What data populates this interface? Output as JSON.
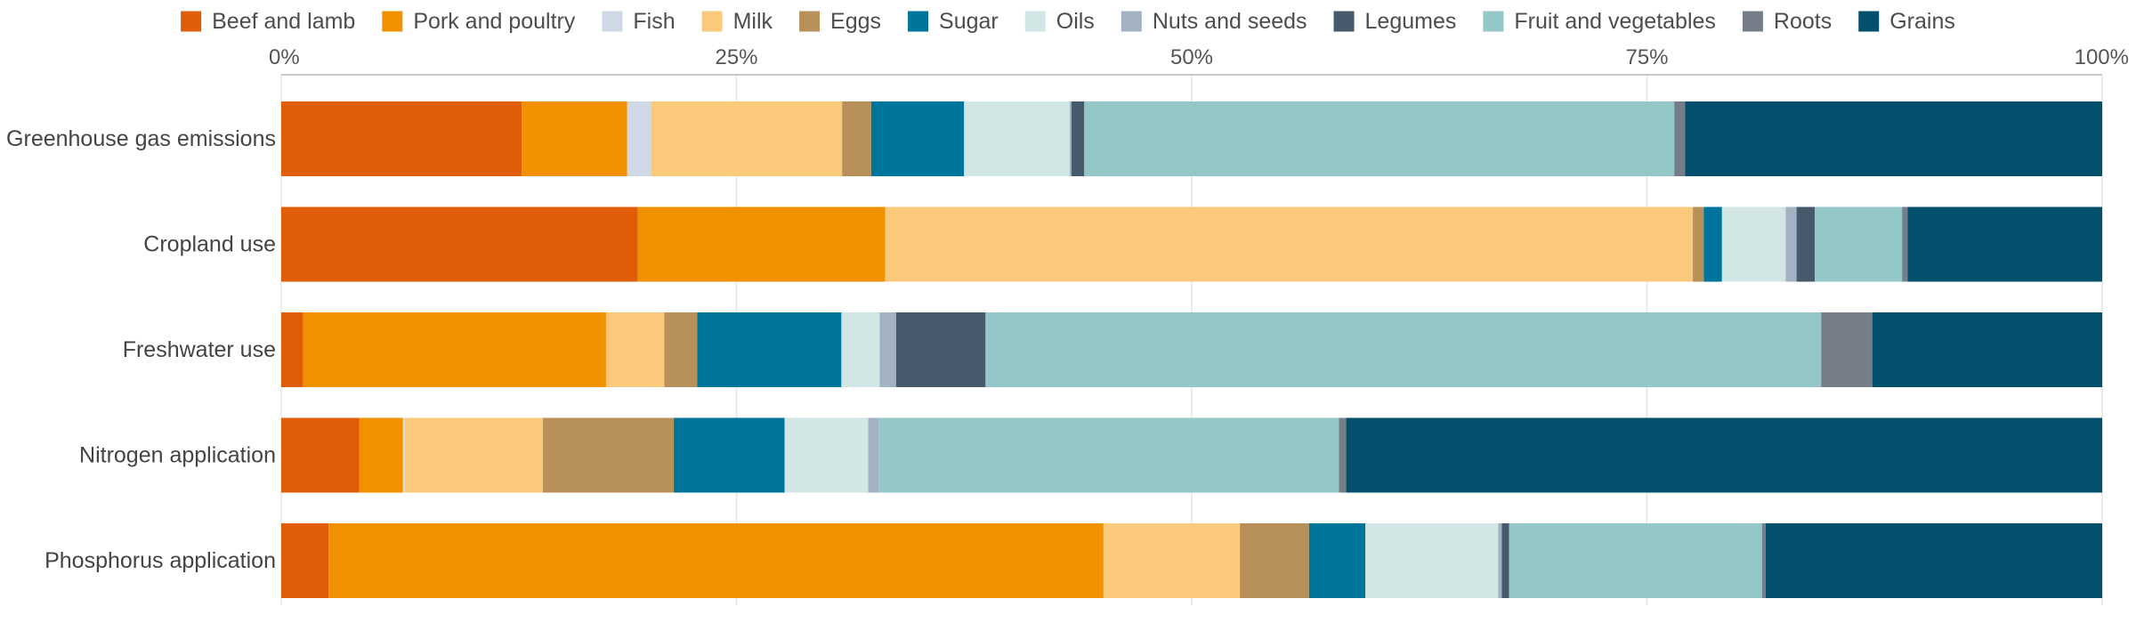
{
  "chart_data": {
    "type": "bar",
    "orientation": "horizontal",
    "stacked": true,
    "normalized": true,
    "categories": [
      "Greenhouse gas emissions",
      "Cropland use",
      "Freshwater use",
      "Nitrogen application",
      "Phosphorus application"
    ],
    "series": [
      {
        "name": "Beef and lamb",
        "color": "#e05e0a",
        "values": [
          13.2,
          19.6,
          1.2,
          4.3,
          2.6
        ]
      },
      {
        "name": "Pork and poultry",
        "color": "#f29100",
        "values": [
          5.8,
          13.6,
          16.6,
          2.4,
          42.6
        ]
      },
      {
        "name": "Fish",
        "color": "#cfd8e6",
        "values": [
          1.3,
          0.0,
          0.0,
          0.1,
          0.0
        ]
      },
      {
        "name": "Milk",
        "color": "#fbc97c",
        "values": [
          10.5,
          44.4,
          3.2,
          7.6,
          7.5
        ]
      },
      {
        "name": "Eggs",
        "color": "#b89059",
        "values": [
          1.6,
          0.6,
          1.8,
          7.2,
          3.8
        ]
      },
      {
        "name": "Sugar",
        "color": "#00759b",
        "values": [
          5.1,
          1.0,
          7.9,
          6.1,
          3.1
        ]
      },
      {
        "name": "Oils",
        "color": "#d1e6e5",
        "values": [
          5.8,
          3.5,
          2.1,
          4.6,
          7.3
        ]
      },
      {
        "name": "Nuts and seeds",
        "color": "#a3b2c2",
        "values": [
          0.1,
          0.6,
          0.9,
          0.6,
          0.2
        ]
      },
      {
        "name": "Legumes",
        "color": "#465a6b",
        "values": [
          0.7,
          1.0,
          4.9,
          0.0,
          0.4
        ]
      },
      {
        "name": "Fruit and vegetables",
        "color": "#94c8c8",
        "values": [
          32.4,
          4.8,
          45.8,
          25.3,
          13.9
        ]
      },
      {
        "name": "Roots",
        "color": "#767f89",
        "values": [
          0.6,
          0.3,
          2.8,
          0.4,
          0.2
        ]
      },
      {
        "name": "Grains",
        "color": "#02506b",
        "values": [
          22.9,
          10.7,
          12.6,
          41.6,
          18.5
        ]
      }
    ],
    "xlim": [
      0,
      100
    ],
    "x_ticks": [
      "0%",
      "25%",
      "50%",
      "75%",
      "100%"
    ],
    "x_tick_values": [
      0,
      25,
      50,
      75,
      100
    ],
    "x_axis_position": "top",
    "grid": true,
    "legend_position": "top",
    "title": "",
    "xlabel": "",
    "ylabel": ""
  }
}
